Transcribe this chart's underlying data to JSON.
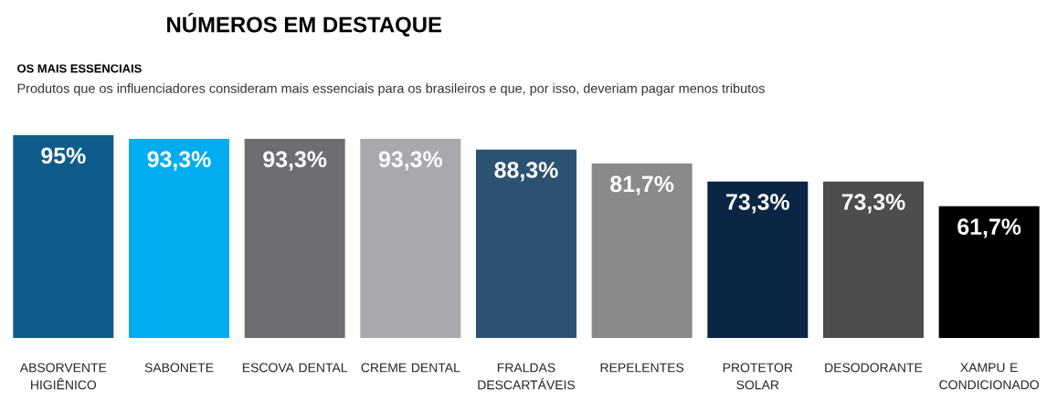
{
  "chart_data": {
    "type": "bar",
    "title": "NÚMEROS EM DESTAQUE",
    "subtitle": "OS MAIS ESSENCIAIS",
    "annotations": [
      "Produtos que os influenciadores consideram mais essenciais para os brasileiros e que, por isso, deveriam pagar menos tributos"
    ],
    "categories": [
      "ABSORVENTE HIGIÊNICO",
      "SABONETE",
      "ESCOVA DENTAL",
      "CREME DENTAL",
      "FRALDAS DESCARTÁVEIS",
      "REPELENTES",
      "PROTETOR SOLAR",
      "DESODORANTE",
      "XAMPU E CONDICIONADO"
    ],
    "values": [
      95,
      93.3,
      93.3,
      93.3,
      88.3,
      81.7,
      73.3,
      73.3,
      61.7
    ],
    "value_labels": [
      "95%",
      "93,3%",
      "93,3%",
      "93,3%",
      "88,3%",
      "81,7%",
      "73,3%",
      "73,3%",
      "61,7%"
    ],
    "colors": [
      "#0f5b8c",
      "#00aeef",
      "#6d6e71",
      "#a7a9ac",
      "#2b5273",
      "#8a8a8c",
      "#0a2644",
      "#4d4d4f",
      "#000000"
    ]
  }
}
